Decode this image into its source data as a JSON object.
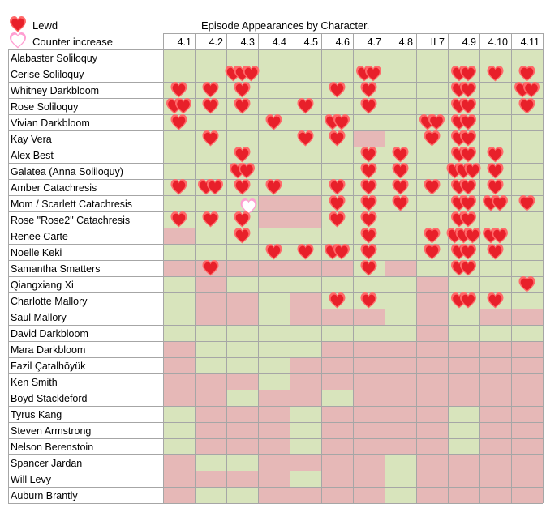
{
  "title": "Episode Appearances by Character.",
  "legend": [
    {
      "key": "lewd",
      "label": "Lewd",
      "icon": "heart-icon",
      "color": "#e8202a"
    },
    {
      "key": "counter",
      "label": "Counter increase",
      "icon": "heart-outline-icon",
      "color": "#ff9ed2"
    }
  ],
  "colors": {
    "present": "#d8e4bc",
    "absent": "#e6b8b7",
    "grid": "#a6a6a6",
    "heart": "#e8202a",
    "heart_outline": "#ff6a6a",
    "counter_heart": "#ff9ed2"
  },
  "chart_data": {
    "type": "table",
    "columns": [
      "4.1",
      "4.2",
      "4.3",
      "4.4",
      "4.5",
      "4.6",
      "4.7",
      "4.8",
      "IL7",
      "4.9",
      "4.10",
      "4.11"
    ],
    "cell_legend": {
      "P": "present (green)",
      "A": "absent (pink)"
    },
    "rows": [
      {
        "name": "Alabaster Soliloquy",
        "cells": [
          "P",
          "P",
          "P",
          "P",
          "P",
          "P",
          "P",
          "P",
          "P",
          "P",
          "P",
          "P"
        ],
        "lewd": [
          0,
          0,
          0,
          0,
          0,
          0,
          0,
          0,
          0,
          0,
          0,
          0
        ]
      },
      {
        "name": "Cerise Soliloquy",
        "cells": [
          "P",
          "P",
          "P",
          "P",
          "P",
          "P",
          "P",
          "P",
          "P",
          "P",
          "P",
          "P"
        ],
        "lewd": [
          0,
          0,
          3,
          0,
          0,
          0,
          2,
          0,
          0,
          2,
          1,
          1
        ]
      },
      {
        "name": "Whitney Darkbloom",
        "cells": [
          "P",
          "P",
          "P",
          "P",
          "P",
          "P",
          "P",
          "P",
          "P",
          "P",
          "P",
          "P"
        ],
        "lewd": [
          1,
          1,
          1,
          0,
          0,
          1,
          1,
          0,
          0,
          2,
          0,
          2
        ]
      },
      {
        "name": "Rose Soliloquy",
        "cells": [
          "P",
          "P",
          "P",
          "P",
          "P",
          "P",
          "P",
          "P",
          "P",
          "P",
          "P",
          "P"
        ],
        "lewd": [
          2,
          1,
          1,
          0,
          1,
          0,
          1,
          0,
          0,
          2,
          0,
          1
        ]
      },
      {
        "name": "Vivian Darkbloom",
        "cells": [
          "P",
          "P",
          "P",
          "P",
          "P",
          "P",
          "P",
          "P",
          "P",
          "P",
          "P",
          "P"
        ],
        "lewd": [
          1,
          0,
          0,
          1,
          0,
          2,
          0,
          0,
          2,
          2,
          0,
          0
        ]
      },
      {
        "name": "Kay Vera",
        "cells": [
          "P",
          "P",
          "P",
          "P",
          "P",
          "P",
          "A",
          "P",
          "P",
          "P",
          "P",
          "P"
        ],
        "lewd": [
          0,
          1,
          0,
          0,
          1,
          1,
          0,
          0,
          1,
          2,
          0,
          0
        ]
      },
      {
        "name": "Alex Best",
        "cells": [
          "P",
          "P",
          "P",
          "P",
          "P",
          "P",
          "P",
          "P",
          "P",
          "P",
          "P",
          "P"
        ],
        "lewd": [
          0,
          0,
          1,
          0,
          0,
          0,
          1,
          1,
          0,
          2,
          1,
          0
        ]
      },
      {
        "name": "Galatea (Anna Soliloquy)",
        "cells": [
          "P",
          "P",
          "P",
          "P",
          "P",
          "P",
          "P",
          "P",
          "P",
          "P",
          "P",
          "P"
        ],
        "lewd": [
          0,
          0,
          2,
          0,
          0,
          0,
          1,
          1,
          0,
          3,
          1,
          0
        ]
      },
      {
        "name": "Amber Catachresis",
        "cells": [
          "P",
          "P",
          "P",
          "P",
          "P",
          "P",
          "P",
          "P",
          "P",
          "P",
          "P",
          "P"
        ],
        "lewd": [
          1,
          2,
          1,
          1,
          0,
          1,
          1,
          1,
          1,
          2,
          1,
          0
        ]
      },
      {
        "name": "Mom / Scarlett Catachresis",
        "cells": [
          "P",
          "P",
          "P",
          "A",
          "A",
          "P",
          "P",
          "P",
          "P",
          "P",
          "P",
          "P"
        ],
        "lewd": [
          0,
          0,
          0,
          0,
          0,
          1,
          1,
          1,
          0,
          2,
          2,
          1
        ],
        "counter": [
          0,
          0,
          1,
          0,
          0,
          0,
          0,
          0,
          0,
          0,
          0,
          0
        ]
      },
      {
        "name": "Rose \"Rose2\" Catachresis",
        "cells": [
          "P",
          "P",
          "P",
          "A",
          "A",
          "P",
          "P",
          "P",
          "P",
          "P",
          "P",
          "P"
        ],
        "lewd": [
          1,
          1,
          1,
          0,
          0,
          1,
          1,
          0,
          0,
          2,
          0,
          0
        ]
      },
      {
        "name": "Renee Carte",
        "cells": [
          "A",
          "P",
          "P",
          "P",
          "P",
          "P",
          "P",
          "P",
          "P",
          "P",
          "P",
          "P"
        ],
        "lewd": [
          0,
          0,
          1,
          0,
          0,
          0,
          1,
          0,
          1,
          3,
          2,
          0
        ]
      },
      {
        "name": "Noelle Keki",
        "cells": [
          "P",
          "P",
          "P",
          "P",
          "P",
          "P",
          "P",
          "P",
          "P",
          "P",
          "P",
          "P"
        ],
        "lewd": [
          0,
          0,
          0,
          1,
          1,
          2,
          1,
          0,
          1,
          2,
          1,
          0
        ]
      },
      {
        "name": "Samantha Smatters",
        "cells": [
          "A",
          "A",
          "A",
          "A",
          "A",
          "A",
          "P",
          "A",
          "P",
          "P",
          "P",
          "P"
        ],
        "lewd": [
          0,
          1,
          0,
          0,
          0,
          0,
          1,
          0,
          0,
          2,
          0,
          0
        ]
      },
      {
        "name": "Qiangxiang Xi",
        "cells": [
          "P",
          "A",
          "P",
          "P",
          "P",
          "P",
          "P",
          "P",
          "A",
          "P",
          "P",
          "P"
        ],
        "lewd": [
          0,
          0,
          0,
          0,
          0,
          0,
          0,
          0,
          0,
          0,
          0,
          1
        ]
      },
      {
        "name": "Charlotte Mallory",
        "cells": [
          "P",
          "A",
          "A",
          "P",
          "A",
          "P",
          "P",
          "P",
          "A",
          "P",
          "P",
          "P"
        ],
        "lewd": [
          0,
          0,
          0,
          0,
          0,
          1,
          1,
          0,
          0,
          2,
          1,
          0
        ]
      },
      {
        "name": "Saul Mallory",
        "cells": [
          "P",
          "A",
          "A",
          "P",
          "A",
          "A",
          "A",
          "P",
          "A",
          "P",
          "A",
          "A"
        ],
        "lewd": [
          0,
          0,
          0,
          0,
          0,
          0,
          0,
          0,
          0,
          0,
          0,
          0
        ]
      },
      {
        "name": "David Darkbloom",
        "cells": [
          "P",
          "P",
          "P",
          "P",
          "P",
          "P",
          "P",
          "P",
          "A",
          "P",
          "P",
          "P"
        ],
        "lewd": [
          0,
          0,
          0,
          0,
          0,
          0,
          0,
          0,
          0,
          0,
          0,
          0
        ]
      },
      {
        "name": "Mara Darkbloom",
        "cells": [
          "A",
          "P",
          "P",
          "P",
          "P",
          "A",
          "A",
          "A",
          "A",
          "A",
          "A",
          "A"
        ],
        "lewd": [
          0,
          0,
          0,
          0,
          0,
          0,
          0,
          0,
          0,
          0,
          0,
          0
        ]
      },
      {
        "name": "Fazil Çatalhöyük",
        "cells": [
          "A",
          "P",
          "P",
          "P",
          "A",
          "A",
          "A",
          "A",
          "A",
          "A",
          "A",
          "A"
        ],
        "lewd": [
          0,
          0,
          0,
          0,
          0,
          0,
          0,
          0,
          0,
          0,
          0,
          0
        ]
      },
      {
        "name": "Ken Smith",
        "cells": [
          "A",
          "A",
          "A",
          "P",
          "A",
          "A",
          "A",
          "A",
          "A",
          "A",
          "A",
          "A"
        ],
        "lewd": [
          0,
          0,
          0,
          0,
          0,
          0,
          0,
          0,
          0,
          0,
          0,
          0
        ]
      },
      {
        "name": "Boyd Stackleford",
        "cells": [
          "A",
          "A",
          "P",
          "A",
          "A",
          "P",
          "A",
          "A",
          "A",
          "A",
          "A",
          "A"
        ],
        "lewd": [
          0,
          0,
          0,
          0,
          0,
          0,
          0,
          0,
          0,
          0,
          0,
          0
        ]
      },
      {
        "name": "Tyrus Kang",
        "cells": [
          "P",
          "A",
          "A",
          "A",
          "P",
          "A",
          "A",
          "A",
          "A",
          "P",
          "A",
          "A"
        ],
        "lewd": [
          0,
          0,
          0,
          0,
          0,
          0,
          0,
          0,
          0,
          0,
          0,
          0
        ]
      },
      {
        "name": "Steven Armstrong",
        "cells": [
          "P",
          "A",
          "A",
          "A",
          "P",
          "A",
          "A",
          "A",
          "A",
          "P",
          "A",
          "A"
        ],
        "lewd": [
          0,
          0,
          0,
          0,
          0,
          0,
          0,
          0,
          0,
          0,
          0,
          0
        ]
      },
      {
        "name": "Nelson Berenstoin",
        "cells": [
          "P",
          "A",
          "A",
          "A",
          "P",
          "A",
          "A",
          "A",
          "A",
          "P",
          "A",
          "A"
        ],
        "lewd": [
          0,
          0,
          0,
          0,
          0,
          0,
          0,
          0,
          0,
          0,
          0,
          0
        ]
      },
      {
        "name": "Spancer Jardan",
        "cells": [
          "A",
          "P",
          "P",
          "A",
          "A",
          "A",
          "A",
          "P",
          "A",
          "A",
          "A",
          "A"
        ],
        "lewd": [
          0,
          0,
          0,
          0,
          0,
          0,
          0,
          0,
          0,
          0,
          0,
          0
        ]
      },
      {
        "name": "Will Levy",
        "cells": [
          "A",
          "A",
          "A",
          "A",
          "P",
          "A",
          "A",
          "P",
          "A",
          "A",
          "A",
          "A"
        ],
        "lewd": [
          0,
          0,
          0,
          0,
          0,
          0,
          0,
          0,
          0,
          0,
          0,
          0
        ]
      },
      {
        "name": "Auburn Brantly",
        "cells": [
          "A",
          "P",
          "P",
          "A",
          "A",
          "A",
          "A",
          "P",
          "A",
          "A",
          "A",
          "A"
        ],
        "lewd": [
          0,
          0,
          0,
          0,
          0,
          0,
          0,
          0,
          0,
          0,
          0,
          0
        ]
      }
    ]
  }
}
